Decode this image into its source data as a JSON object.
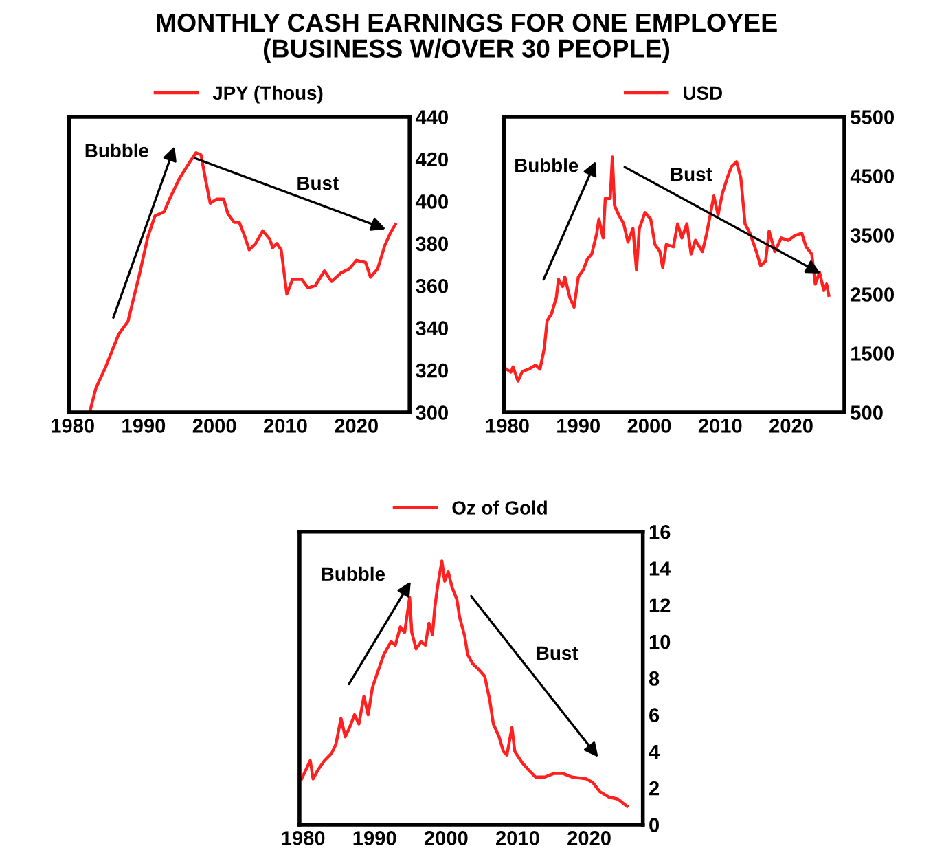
{
  "chart_data": [
    {
      "type": "line",
      "title": "MONTHLY CASH EARNINGS FOR ONE EMPLOYEE\n(BUSINESS W/OVER 30 PEOPLE)",
      "legend": "top",
      "grid": false,
      "line_style": "solid",
      "marker": "none",
      "xlim": [
        1979.5,
        2027.5
      ],
      "xticks": [
        1980,
        1990,
        2000,
        2010,
        2020
      ],
      "ylim": [
        300,
        440
      ],
      "yticks": [
        300,
        320,
        340,
        360,
        380,
        400,
        420,
        440
      ],
      "annotations": [
        "Bubble",
        "Bust"
      ],
      "series": [
        {
          "name": "JPY (Thous)",
          "color": "#ff2020",
          "x": [
            1982.4,
            1983.3,
            1984.6,
            1986.5,
            1987.8,
            1989.4,
            1990.6,
            1991.6,
            1992.9,
            1993.8,
            1995.1,
            1996.4,
            1997.4,
            1998.1,
            1998.7,
            1999.4,
            2000.3,
            2001.3,
            2001.9,
            2002.8,
            2003.5,
            2004.2,
            2004.9,
            2005.8,
            2006.8,
            2007.8,
            2008.2,
            2008.8,
            2009.4,
            2010.2,
            2011,
            2012.3,
            2013.2,
            2014.2,
            2015.5,
            2016.5,
            2017.8,
            2019,
            2020,
            2021.3,
            2022,
            2023,
            2024,
            2024.8,
            2025.5
          ],
          "values": [
            300,
            311.6,
            321,
            337,
            343,
            365,
            383,
            393,
            395,
            402,
            411,
            418,
            423,
            422,
            411,
            399,
            401,
            401,
            394,
            390,
            390,
            384,
            377,
            380,
            386,
            382,
            378,
            380,
            377,
            356,
            363,
            363,
            359,
            360,
            367,
            362,
            366,
            368,
            372,
            371,
            364,
            368,
            379,
            385,
            389
          ]
        }
      ]
    },
    {
      "type": "line",
      "legend": "top",
      "grid": false,
      "line_style": "solid",
      "marker": "none",
      "xlim": [
        1979.5,
        2027.5
      ],
      "xticks": [
        1980,
        1990,
        2000,
        2010,
        2020
      ],
      "ylim": [
        500,
        5500
      ],
      "yticks": [
        500,
        1500,
        2500,
        3500,
        4500,
        5500
      ],
      "annotations": [
        "Bubble",
        "Bust"
      ],
      "series": [
        {
          "name": "USD",
          "color": "#ff2020",
          "x": [
            1979.9,
            1980.5,
            1980.8,
            1981.5,
            1982.1,
            1983,
            1984,
            1984.6,
            1985.2,
            1985.6,
            1986.2,
            1986.9,
            1987.2,
            1987.8,
            1988.1,
            1988.8,
            1989.4,
            1990,
            1990.7,
            1991.3,
            1991.9,
            1992.6,
            1992.9,
            1993.5,
            1993.8,
            1994.5,
            1994.8,
            1995.1,
            1995.7,
            1996.4,
            1997,
            1997.7,
            1998.2,
            1998.6,
            1999.4,
            2000.2,
            2000.8,
            2001.5,
            2001.9,
            2002.4,
            2003.4,
            2004,
            2004.6,
            2005.3,
            2005.9,
            2006.5,
            2007.5,
            2008.1,
            2008.6,
            2009.1,
            2009.7,
            2010.3,
            2011,
            2011.6,
            2012.3,
            2012.9,
            2013.5,
            2014.2,
            2015.1,
            2015.7,
            2016.4,
            2016.9,
            2017.7,
            2018.6,
            2019.6,
            2020.5,
            2021.5,
            2022.1,
            2022.9,
            2023.4,
            2024,
            2024.6,
            2025,
            2025.3
          ],
          "values": [
            1230,
            1180,
            1270,
            1030,
            1190,
            1230,
            1300,
            1230,
            1580,
            2050,
            2160,
            2440,
            2750,
            2630,
            2790,
            2440,
            2280,
            2790,
            2910,
            3100,
            3180,
            3530,
            3770,
            3450,
            4120,
            4120,
            4820,
            4000,
            3840,
            3690,
            3380,
            3610,
            2910,
            3610,
            3880,
            3770,
            3340,
            3220,
            2950,
            3340,
            3300,
            3690,
            3450,
            3690,
            3180,
            3410,
            3220,
            3530,
            3840,
            4160,
            3840,
            4200,
            4470,
            4660,
            4740,
            4470,
            3690,
            3530,
            3220,
            2980,
            3060,
            3570,
            3220,
            3450,
            3410,
            3490,
            3530,
            3300,
            3180,
            2670,
            2870,
            2560,
            2670,
            2480
          ]
        }
      ]
    },
    {
      "type": "line",
      "legend": "top",
      "grid": false,
      "line_style": "solid",
      "marker": "none",
      "xlim": [
        1979.5,
        2027.5
      ],
      "xticks": [
        1980,
        1990,
        2000,
        2010,
        2020
      ],
      "ylim": [
        0,
        16
      ],
      "yticks": [
        0,
        2,
        4,
        6,
        8,
        10,
        12,
        14,
        16
      ],
      "annotations": [
        "Bubble",
        "Bust"
      ],
      "series": [
        {
          "name": "Oz of Gold",
          "color": "#ff2020",
          "x": [
            1979.8,
            1980.4,
            1981,
            1981.4,
            1982.1,
            1983,
            1984,
            1984.6,
            1985.3,
            1985.9,
            1986.5,
            1987.2,
            1987.8,
            1988.5,
            1989.1,
            1989.7,
            1990.4,
            1991.3,
            1992.3,
            1992.9,
            1993.6,
            1994.2,
            1994.9,
            1995.2,
            1995.8,
            1996.5,
            1997.1,
            1997.6,
            1998.1,
            1998.4,
            1998.8,
            1999.4,
            1999.8,
            2000.3,
            2000.8,
            2001.5,
            2001.9,
            2002.6,
            2003,
            2003.7,
            2004.5,
            2005.4,
            2006.1,
            2006.6,
            2007.4,
            2008,
            2008.5,
            2009.2,
            2009.6,
            2010.6,
            2011.5,
            2012.5,
            2013.8,
            2015.1,
            2016.3,
            2017.6,
            2019.6,
            2020.5,
            2021.5,
            2022.8,
            2024,
            2025.3
          ],
          "values": [
            2.5,
            3.0,
            3.5,
            2.5,
            3.0,
            3.5,
            3.9,
            4.4,
            5.8,
            4.8,
            5.3,
            6.0,
            5.5,
            7.0,
            6.0,
            7.5,
            8.3,
            9.3,
            10.0,
            9.8,
            10.8,
            10.5,
            12.4,
            10.5,
            9.6,
            10.0,
            9.8,
            11.0,
            10.4,
            11.8,
            13.0,
            14.4,
            13.3,
            13.8,
            13.0,
            12.3,
            11.3,
            10.3,
            9.3,
            8.8,
            8.5,
            8.1,
            6.8,
            5.5,
            4.8,
            4.0,
            3.8,
            5.3,
            4.0,
            3.4,
            3.0,
            2.6,
            2.6,
            2.8,
            2.8,
            2.6,
            2.5,
            2.3,
            1.8,
            1.5,
            1.4,
            1.0
          ]
        }
      ]
    }
  ]
}
